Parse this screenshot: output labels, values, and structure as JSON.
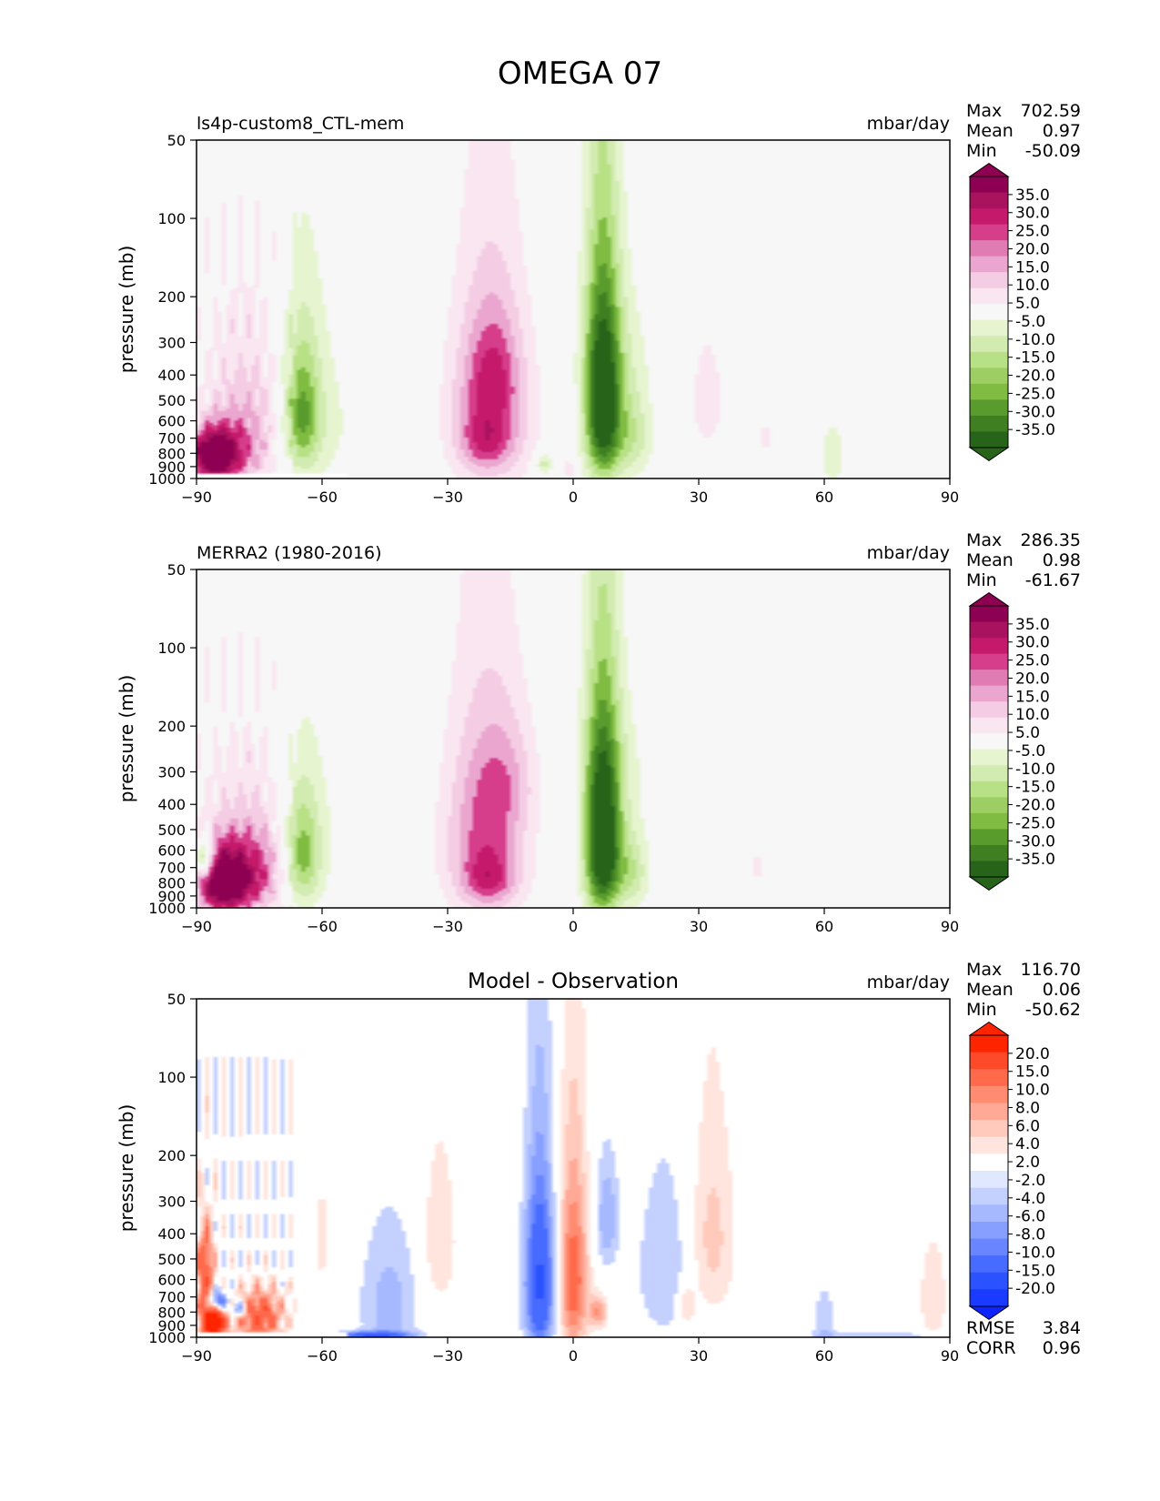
{
  "figure": {
    "title": "OMEGA 07"
  },
  "chart_data": [
    {
      "type": "contour",
      "id": "model",
      "left_title": "ls4p-custom8_CTL-mem",
      "center_title": "",
      "units": "mbar/day",
      "stats": [
        {
          "label": "Max",
          "value": "702.59"
        },
        {
          "label": "Mean",
          "value": "0.97"
        },
        {
          "label": "Min",
          "value": "-50.09"
        }
      ],
      "ylabel": "pressure (mb)",
      "xlim": [
        -90,
        90
      ],
      "ylim": [
        1000,
        50
      ],
      "xticks": [
        -90,
        -60,
        -30,
        0,
        30,
        60,
        90
      ],
      "xtick_labels": [
        "−90",
        "−60",
        "−30",
        "0",
        "30",
        "60",
        "90"
      ],
      "yticks": [
        50,
        100,
        200,
        300,
        400,
        500,
        600,
        700,
        800,
        900,
        1000
      ],
      "colorbar": {
        "labels": [
          "35.0",
          "30.0",
          "25.0",
          "20.0",
          "15.0",
          "10.0",
          "5.0",
          "-5.0",
          "-10.0",
          "-15.0",
          "-20.0",
          "-25.0",
          "-30.0",
          "-35.0"
        ],
        "colors": [
          "#8e0152",
          "#a8125e",
          "#c5196b",
          "#d63d8b",
          "#e17bb4",
          "#eaa6cf",
          "#f4cde4",
          "#fae6f1",
          "#f7f7f7",
          "#e6f5d0",
          "#d2ebb0",
          "#b8e186",
          "#9cce64",
          "#7fbc41",
          "#5a9b2e",
          "#3f7f22",
          "#276419"
        ],
        "extend_top": "#8e0152",
        "extend_bottom": "#276419"
      },
      "background": "#f7f7f7",
      "features": [
        {
          "lat": -86,
          "p": 820,
          "sx": 4,
          "sy": 130,
          "value": 45
        },
        {
          "lat": -78,
          "p": 760,
          "sx": 6,
          "sy": 220,
          "value": 15
        },
        {
          "lat": -76,
          "p": 420,
          "sx": 10,
          "sy": 260,
          "value": 8
        },
        {
          "lat": -65,
          "p": 560,
          "sx": 3,
          "sy": 230,
          "value": -22
        },
        {
          "lat": -64,
          "p": 500,
          "sx": 6,
          "sy": 320,
          "value": -8
        },
        {
          "lat": -55,
          "p": 650,
          "sx": 12,
          "sy": 320,
          "value": -3
        },
        {
          "lat": -20,
          "p": 560,
          "sx": 7,
          "sy": 320,
          "value": 22
        },
        {
          "lat": -19,
          "p": 380,
          "sx": 4,
          "sy": 130,
          "value": 10
        },
        {
          "lat": -21,
          "p": 720,
          "sx": 4,
          "sy": 120,
          "value": 10
        },
        {
          "lat": -7,
          "p": 880,
          "sx": 1.5,
          "sy": 60,
          "value": -14
        },
        {
          "lat": 7,
          "p": 520,
          "sx": 3,
          "sy": 310,
          "value": -45
        },
        {
          "lat": 14,
          "p": 680,
          "sx": 3.5,
          "sy": 200,
          "value": -14
        },
        {
          "lat": 10,
          "p": 300,
          "sx": 6,
          "sy": 150,
          "value": -6
        },
        {
          "lat": 32,
          "p": 500,
          "sx": 5,
          "sy": 320,
          "value": 6
        },
        {
          "lat": 46,
          "p": 700,
          "sx": 2,
          "sy": 100,
          "value": 6
        },
        {
          "lat": 62,
          "p": 820,
          "sx": 3,
          "sy": 220,
          "value": -7
        },
        {
          "lat": -1,
          "p": 920,
          "sx": 1,
          "sy": 50,
          "value": 10
        }
      ]
    },
    {
      "type": "contour",
      "id": "obs",
      "left_title": "MERRA2 (1980-2016)",
      "center_title": "",
      "units": "mbar/day",
      "stats": [
        {
          "label": "Max",
          "value": "286.35"
        },
        {
          "label": "Mean",
          "value": "0.98"
        },
        {
          "label": "Min",
          "value": "-61.67"
        }
      ],
      "ylabel": "pressure (mb)",
      "xlim": [
        -90,
        90
      ],
      "ylim": [
        1000,
        50
      ],
      "xticks": [
        -90,
        -60,
        -30,
        0,
        30,
        60,
        90
      ],
      "xtick_labels": [
        "−90",
        "−60",
        "−30",
        "0",
        "30",
        "60",
        "90"
      ],
      "yticks": [
        50,
        100,
        200,
        300,
        400,
        500,
        600,
        700,
        800,
        900,
        1000
      ],
      "colorbar": {
        "labels": [
          "35.0",
          "30.0",
          "25.0",
          "20.0",
          "15.0",
          "10.0",
          "5.0",
          "-5.0",
          "-10.0",
          "-15.0",
          "-20.0",
          "-25.0",
          "-30.0",
          "-35.0"
        ],
        "colors": [
          "#8e0152",
          "#a8125e",
          "#c5196b",
          "#d63d8b",
          "#e17bb4",
          "#eaa6cf",
          "#f4cde4",
          "#fae6f1",
          "#f7f7f7",
          "#e6f5d0",
          "#d2ebb0",
          "#b8e186",
          "#9cce64",
          "#7fbc41",
          "#5a9b2e",
          "#3f7f22",
          "#276419"
        ],
        "extend_top": "#8e0152",
        "extend_bottom": "#276419"
      },
      "background": "#f7f7f7",
      "features": [
        {
          "lat": -84,
          "p": 800,
          "sx": 4,
          "sy": 160,
          "value": 45
        },
        {
          "lat": -76,
          "p": 760,
          "sx": 5,
          "sy": 200,
          "value": 20
        },
        {
          "lat": -78,
          "p": 470,
          "sx": 10,
          "sy": 260,
          "value": 8
        },
        {
          "lat": -88,
          "p": 650,
          "sx": 1.5,
          "sy": 80,
          "value": -30
        },
        {
          "lat": -65,
          "p": 620,
          "sx": 3,
          "sy": 220,
          "value": -20
        },
        {
          "lat": -63,
          "p": 520,
          "sx": 6,
          "sy": 320,
          "value": -7
        },
        {
          "lat": -21,
          "p": 560,
          "sx": 7,
          "sy": 330,
          "value": 22
        },
        {
          "lat": -20,
          "p": 780,
          "sx": 4,
          "sy": 120,
          "value": 12
        },
        {
          "lat": -16,
          "p": 320,
          "sx": 5,
          "sy": 110,
          "value": 8
        },
        {
          "lat": 7,
          "p": 560,
          "sx": 3,
          "sy": 320,
          "value": -48
        },
        {
          "lat": 14,
          "p": 720,
          "sx": 3,
          "sy": 180,
          "value": -14
        },
        {
          "lat": 10,
          "p": 280,
          "sx": 6,
          "sy": 130,
          "value": -6
        },
        {
          "lat": 44,
          "p": 700,
          "sx": 1.5,
          "sy": 120,
          "value": 6
        },
        {
          "lat": 32,
          "p": 700,
          "sx": 1.5,
          "sy": 150,
          "value": 5
        }
      ]
    },
    {
      "type": "contour",
      "id": "diff",
      "left_title": "",
      "center_title": "Model - Observation",
      "units": "mbar/day",
      "stats": [
        {
          "label": "Max",
          "value": "116.70"
        },
        {
          "label": "Mean",
          "value": "0.06"
        },
        {
          "label": "Min",
          "value": "-50.62"
        }
      ],
      "bottom_stats": [
        {
          "label": "RMSE",
          "value": "3.84"
        },
        {
          "label": "CORR",
          "value": "0.96"
        }
      ],
      "ylabel": "pressure (mb)",
      "xlim": [
        -90,
        90
      ],
      "ylim": [
        1000,
        50
      ],
      "xticks": [
        -90,
        -60,
        -30,
        0,
        30,
        60,
        90
      ],
      "xtick_labels": [
        "−90",
        "−60",
        "−30",
        "0",
        "30",
        "60",
        "90"
      ],
      "yticks": [
        50,
        100,
        200,
        300,
        400,
        500,
        600,
        700,
        800,
        900,
        1000
      ],
      "colorbar": {
        "labels": [
          "20.0",
          "15.0",
          "10.0",
          "8.0",
          "6.0",
          "4.0",
          "2.0",
          "-2.0",
          "-4.0",
          "-6.0",
          "-8.0",
          "-10.0",
          "-15.0",
          "-20.0"
        ],
        "colors": [
          "#ff2400",
          "#ff4a2a",
          "#ff6a4c",
          "#ff8b70",
          "#ffa996",
          "#ffcabc",
          "#ffe5dd",
          "#ffffff",
          "#e0e8ff",
          "#c4d1ff",
          "#a6b9ff",
          "#87a0ff",
          "#6886ff",
          "#486bff",
          "#2a52ff",
          "#1a3aff"
        ],
        "extend_top": "#ff2400",
        "extend_bottom": "#0d24ff"
      },
      "background": "#ffffff",
      "features": [
        {
          "lat": -86,
          "p": 870,
          "sx": 2,
          "sy": 90,
          "value": 30
        },
        {
          "lat": -88,
          "p": 560,
          "sx": 1.5,
          "sy": 150,
          "value": 14
        },
        {
          "lat": -75,
          "p": 830,
          "sx": 4,
          "sy": 130,
          "value": 14
        },
        {
          "lat": -85,
          "p": 730,
          "sx": 1.5,
          "sy": 50,
          "value": -18
        },
        {
          "lat": -80,
          "p": 780,
          "sx": 1.5,
          "sy": 40,
          "value": -10
        },
        {
          "lat": -44,
          "p": 760,
          "sx": 5,
          "sy": 330,
          "value": -5
        },
        {
          "lat": -48,
          "p": 985,
          "sx": 6,
          "sy": 25,
          "value": -14
        },
        {
          "lat": -8,
          "p": 620,
          "sx": 2.5,
          "sy": 330,
          "value": -16
        },
        {
          "lat": 0,
          "p": 600,
          "sx": 2.5,
          "sy": 340,
          "value": 12
        },
        {
          "lat": 6,
          "p": 800,
          "sx": 1.5,
          "sy": 80,
          "value": 8
        },
        {
          "lat": 8,
          "p": 350,
          "sx": 2,
          "sy": 120,
          "value": -6
        },
        {
          "lat": 22,
          "p": 550,
          "sx": 5,
          "sy": 300,
          "value": -4
        },
        {
          "lat": 33,
          "p": 420,
          "sx": 4,
          "sy": 260,
          "value": 5
        },
        {
          "lat": 27,
          "p": 760,
          "sx": 1.5,
          "sy": 100,
          "value": 5
        },
        {
          "lat": 60,
          "p": 900,
          "sx": 2,
          "sy": 200,
          "value": -4
        },
        {
          "lat": 75,
          "p": 985,
          "sx": 12,
          "sy": 20,
          "value": -4
        },
        {
          "lat": 86,
          "p": 700,
          "sx": 3,
          "sy": 300,
          "value": 3
        },
        {
          "lat": -32,
          "p": 430,
          "sx": 3,
          "sy": 220,
          "value": 4
        },
        {
          "lat": -60,
          "p": 420,
          "sx": 1.5,
          "sy": 150,
          "value": 3
        }
      ]
    }
  ]
}
